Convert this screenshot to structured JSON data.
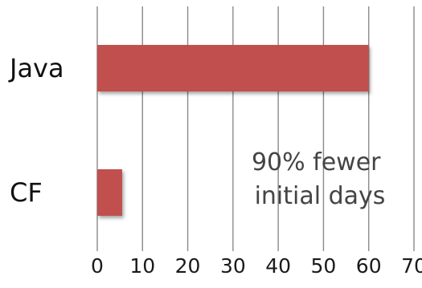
{
  "chart_data": {
    "type": "bar",
    "orientation": "horizontal",
    "categories": [
      "Java",
      "CF"
    ],
    "values": [
      60,
      5.5
    ],
    "xlim": [
      0,
      70
    ],
    "xticks": [
      "0",
      "10",
      "20",
      "30",
      "40",
      "50",
      "60",
      "70"
    ],
    "grid": "vertical",
    "annotation": [
      "90% fewer",
      "initial days"
    ],
    "bar_color": "#c0504d",
    "grid_color": "#8a8a8a"
  }
}
